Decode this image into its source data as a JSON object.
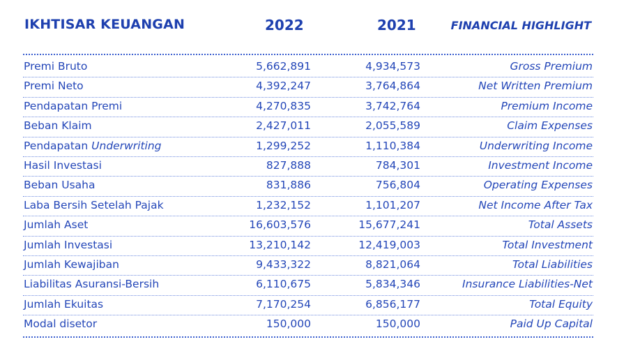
{
  "header": {
    "title_id": "IKHTISAR KEUANGAN",
    "year_1": "2022",
    "year_2": "2021",
    "title_en": "FINANCIAL HIGHLIGHT"
  },
  "rows": [
    {
      "id": "Premi Bruto",
      "v2022": "5,662,891",
      "v2021": "4,934,573",
      "en": "Gross Premium"
    },
    {
      "id": "Premi Neto",
      "v2022": "4,392,247",
      "v2021": "3,764,864",
      "en": "Net Written Premium"
    },
    {
      "id": "Pendapatan Premi",
      "v2022": "4,270,835",
      "v2021": "3,742,764",
      "en": "Premium Income"
    },
    {
      "id": "Beban Klaim",
      "v2022": "2,427,011",
      "v2021": "2,055,589",
      "en": "Claim Expenses"
    },
    {
      "id": "Pendapatan",
      "id_italic": "Underwriting",
      "v2022": "1,299,252",
      "v2021": "1,110,384",
      "en": "Underwriting Income"
    },
    {
      "id": "Hasil Investasi",
      "v2022": "827,888",
      "v2021": "784,301",
      "en": "Investment Income"
    },
    {
      "id": "Beban Usaha",
      "v2022": "831,886",
      "v2021": "756,804",
      "en": "Operating Expenses"
    },
    {
      "id": "Laba Bersih Setelah Pajak",
      "v2022": "1,232,152",
      "v2021": "1,101,207",
      "en": "Net Income After Tax"
    },
    {
      "id": "Jumlah Aset",
      "v2022": "16,603,576",
      "v2021": "15,677,241",
      "en": "Total Assets"
    },
    {
      "id": "Jumlah Investasi",
      "v2022": "13,210,142",
      "v2021": "12,419,003",
      "en": "Total Investment"
    },
    {
      "id": "Jumlah Kewajiban",
      "v2022": "9,433,322",
      "v2021": "8,821,064",
      "en": "Total Liabilities"
    },
    {
      "id": "Liabilitas Asuransi-Bersih",
      "v2022": "6,110,675",
      "v2021": "5,834,346",
      "en": "Insurance Liabilities-Net"
    },
    {
      "id": "Jumlah Ekuitas",
      "v2022": "7,170,254",
      "v2021": "6,856,177",
      "en": "Total Equity"
    },
    {
      "id": "Modal disetor",
      "v2022": "150,000",
      "v2021": "150,000",
      "en": "Paid Up Capital"
    }
  ]
}
